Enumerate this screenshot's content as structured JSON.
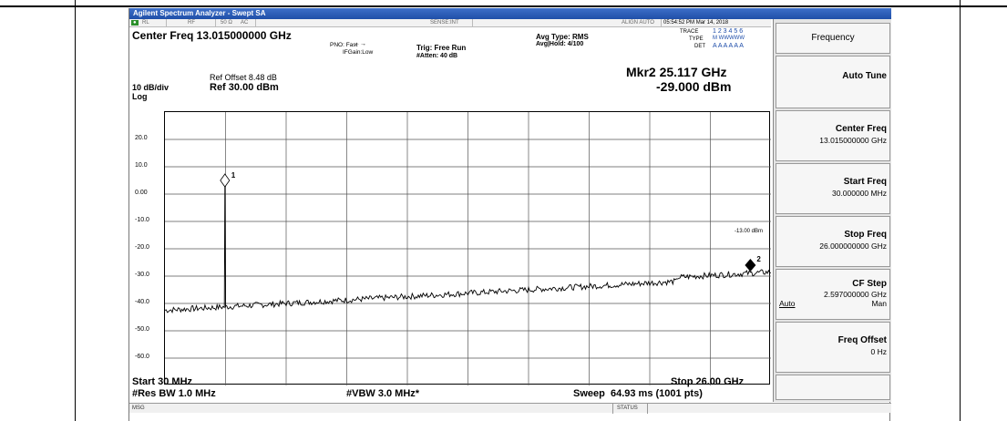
{
  "window": {
    "title": "Agilent Spectrum Analyzer - Swept SA"
  },
  "status_row": {
    "mode": "RL",
    "input": "RF",
    "impedance": "50 Ω",
    "coupling": "AC",
    "sense": "SENSE:INT",
    "align": "ALIGN AUTO",
    "datetime": "05:54:52 PM Mar 14, 2018"
  },
  "header": {
    "center_freq": "Center Freq 13.015000000 GHz",
    "pno": "PNO: Fast",
    "ifgain": "IFGain:Low",
    "trig": "Trig: Free Run",
    "atten": "#Atten: 40 dB",
    "avg_type": "Avg Type: RMS",
    "avg_hold": "Avg|Hold: 4/100",
    "trace_label": "TRACE",
    "trace_nums": "1 2 3 4 5 6",
    "type_label": "TYPE",
    "type_vals": "M WWWWW",
    "det_label": "DET",
    "det_vals": "A A A A A A",
    "ref_offset": "Ref Offset 8.48 dB",
    "scale": "10 dB/div",
    "ref": "Ref 30.00 dBm",
    "log": "Log",
    "marker_freq": "Mkr2 25.117 GHz",
    "marker_amp": "-29.000 dBm"
  },
  "plot": {
    "y_ticks": [
      "20.0",
      "10.0",
      "0.00",
      "-10.0",
      "-20.0",
      "-30.0",
      "-40.0",
      "-50.0",
      "-60.0"
    ],
    "limit_label": "-13.00 dBm",
    "limit_value": -13,
    "marker1": {
      "label": "1",
      "freq_ghz": 2.6,
      "amp_dbm": 5
    },
    "marker2": {
      "label": "2",
      "freq_ghz": 25.117,
      "amp_dbm": -29
    },
    "y_top_dbm": 30,
    "y_bottom_dbm": -70,
    "start_ghz": 0.03,
    "stop_ghz": 26
  },
  "footer": {
    "start": "Start 30 MHz",
    "stop": "Stop 26.00 GHz",
    "rbw": "#Res BW 1.0 MHz",
    "vbw": "#VBW 3.0 MHz*",
    "sweep": "Sweep  64.93 ms (1001 pts)"
  },
  "bottombar": {
    "msg": "MSG",
    "status": "STATUS"
  },
  "softkeys": {
    "title": "Frequency",
    "auto_tune": "Auto Tune",
    "center_freq_label": "Center Freq",
    "center_freq_val": "13.015000000 GHz",
    "start_freq_label": "Start Freq",
    "start_freq_val": "30.000000 MHz",
    "stop_freq_label": "Stop Freq",
    "stop_freq_val": "26.000000000 GHz",
    "cf_step_label": "CF Step",
    "cf_step_val": "2.597000000 GHz",
    "cf_step_auto": "Auto",
    "cf_step_man": "Man",
    "freq_offset_label": "Freq Offset",
    "freq_offset_val": "0 Hz"
  }
}
